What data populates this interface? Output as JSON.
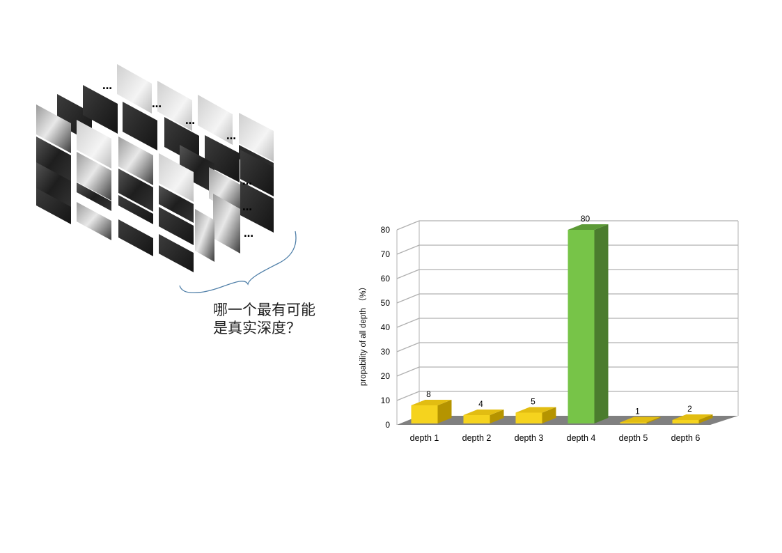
{
  "question": {
    "line1": "哪一个最有可能",
    "line2": "是真实深度？"
  },
  "stack": {
    "ellipsis": "…"
  },
  "chart_data": {
    "type": "bar",
    "categories": [
      "depth 1",
      "depth 2",
      "depth 3",
      "depth 4",
      "depth 5",
      "depth 6"
    ],
    "values": [
      8,
      4,
      5,
      80,
      1,
      2
    ],
    "data_labels": [
      "8",
      "4",
      "5",
      "80",
      "1",
      "2"
    ],
    "ylabel": "propability of all depth （%）",
    "xlabel": "",
    "title": "",
    "ylim": [
      0,
      80
    ],
    "yticks": [
      0,
      10,
      20,
      30,
      40,
      50,
      60,
      70,
      80
    ],
    "grid": true,
    "colors": {
      "default_bar": "#f5d31e",
      "highlight_bar": "#77c448",
      "floor": "#808080",
      "grid": "#b0b0b0"
    },
    "highlight_index": 3
  }
}
